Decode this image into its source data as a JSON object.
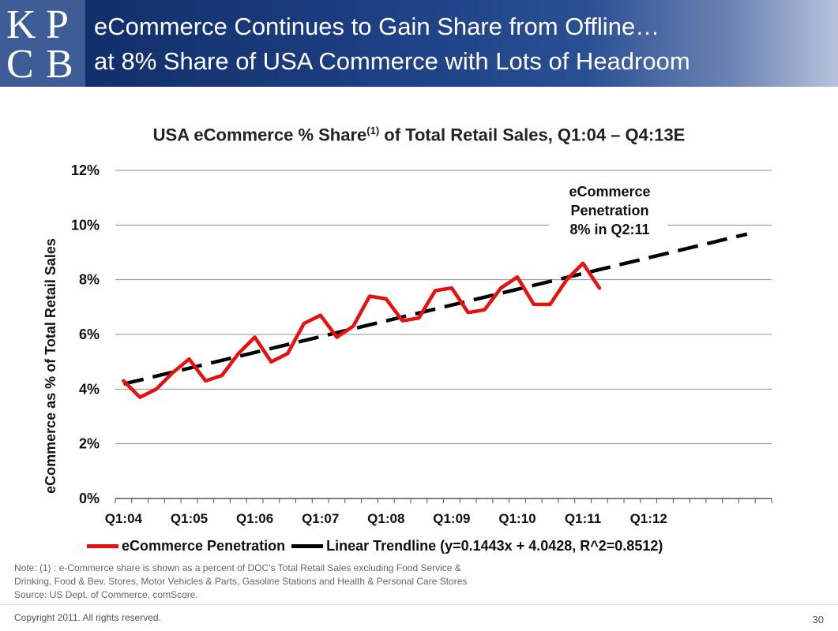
{
  "header": {
    "logo_letters": [
      "K",
      "P",
      "C",
      "B"
    ],
    "title_line1": "eCommerce Continues to Gain Share from Offline…",
    "title_line2": "at 8% Share of USA Commerce with Lots of Headroom"
  },
  "chart_data": {
    "type": "line",
    "title_main": "USA eCommerce % Share",
    "title_sup": "(1)",
    "title_rest": " of Total Retail Sales, Q1:04 – Q4:13E",
    "ylabel": "eCommerce as % of Total Retail Sales",
    "xlabel": "",
    "ylim": [
      0,
      12
    ],
    "yticks": [
      "0%",
      "2%",
      "4%",
      "6%",
      "8%",
      "10%",
      "12%"
    ],
    "x_count": 40,
    "xtick_labels": [
      {
        "index": 0,
        "label": "Q1:04"
      },
      {
        "index": 4,
        "label": "Q1:05"
      },
      {
        "index": 8,
        "label": "Q1:06"
      },
      {
        "index": 12,
        "label": "Q1:07"
      },
      {
        "index": 16,
        "label": "Q1:08"
      },
      {
        "index": 20,
        "label": "Q1:09"
      },
      {
        "index": 24,
        "label": "Q1:10"
      },
      {
        "index": 28,
        "label": "Q1:11"
      },
      {
        "index": 32,
        "label": "Q1:12"
      }
    ],
    "series": [
      {
        "name": "eCommerce Penetration",
        "color": "#e8100f",
        "values": [
          4.3,
          3.7,
          4.0,
          4.6,
          5.1,
          4.3,
          4.5,
          5.3,
          5.9,
          5.0,
          5.3,
          6.4,
          6.7,
          5.9,
          6.3,
          7.4,
          7.3,
          6.5,
          6.6,
          7.6,
          7.7,
          6.8,
          6.9,
          7.7,
          8.1,
          7.1,
          7.1,
          8.0,
          8.6,
          7.7
        ]
      }
    ],
    "trendline": {
      "name": "Linear Trendline (y=0.1443x + 4.0428, R^2=0.8512)",
      "color": "#000000",
      "slope": 0.1443,
      "intercept": 4.0428,
      "r2": 0.8512,
      "x_start": 0,
      "x_end": 38
    },
    "annotation": {
      "lines": [
        "eCommerce",
        "Penetration",
        "8% in Q2:11"
      ]
    }
  },
  "legend": {
    "series_label": "eCommerce Penetration",
    "trend_label": "Linear Trendline (y=0.1443x + 4.0428, R^2=0.8512)"
  },
  "notes": {
    "line1": "Note: (1) : e-Commerce share is shown as a percent of DOC’s Total Retail Sales excluding Food Service &",
    "line2": "Drinking, Food & Bev. Stores,  Motor Vehicles & Parts, Gasoline Stations and Health & Personal Care Stores",
    "line3": "Source: US Dept. of Commerce, comScore."
  },
  "footer": {
    "copyright": "Copyright 2011. All rights reserved.",
    "page_number": "30"
  }
}
